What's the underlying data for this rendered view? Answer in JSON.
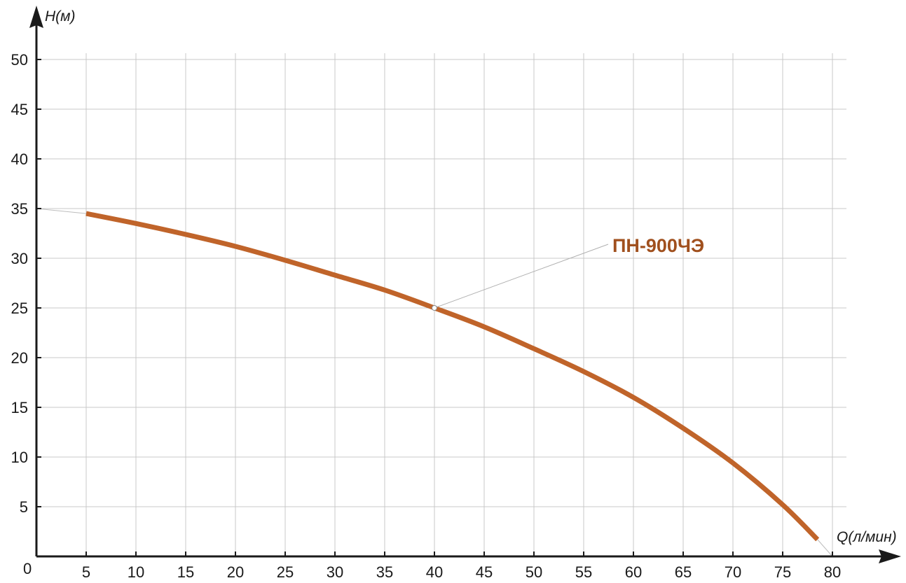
{
  "chart_data": {
    "type": "line",
    "x_label": "Q(л/мин)",
    "y_label": "H(м)",
    "origin_label": "0",
    "xlim": [
      0,
      80
    ],
    "ylim": [
      0,
      50
    ],
    "x_ticks": [
      5,
      10,
      15,
      20,
      25,
      30,
      35,
      40,
      45,
      50,
      55,
      60,
      65,
      70,
      75,
      80
    ],
    "y_ticks": [
      5,
      10,
      15,
      20,
      25,
      30,
      35,
      40,
      45,
      50
    ],
    "grid": true,
    "series": [
      {
        "name": "ПН-900ЧЭ",
        "color": "#c0642a",
        "x": [
          5,
          10,
          15,
          20,
          25,
          30,
          35,
          40,
          45,
          50,
          55,
          60,
          65,
          70,
          75,
          78.5
        ],
        "y": [
          34.5,
          33.5,
          32.4,
          31.2,
          29.8,
          28.3,
          26.8,
          25.0,
          23.1,
          20.9,
          18.6,
          16.0,
          12.9,
          9.4,
          5.2,
          1.7
        ]
      }
    ],
    "annotations": [
      {
        "text": "ПН-900ЧЭ",
        "points_to": {
          "x": 40,
          "y": 25
        }
      }
    ],
    "extrapolation_guides": [
      {
        "from": {
          "x": 0,
          "y": 35
        },
        "to": {
          "x": 5,
          "y": 34.5
        }
      },
      {
        "from": {
          "x": 78.5,
          "y": 1.7
        },
        "to": {
          "x": 80,
          "y": 0
        }
      }
    ],
    "colors": {
      "curve": "#c0642a",
      "label": "#a0501e",
      "grid": "#c8c8c8",
      "axis": "#1a1a1a"
    }
  }
}
